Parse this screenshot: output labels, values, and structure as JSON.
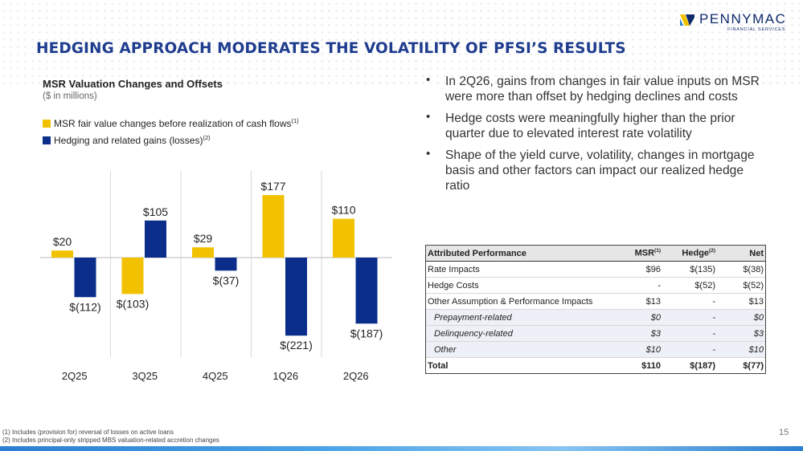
{
  "brand": {
    "name": "PENNYMAC",
    "tagline": "FINANCIAL SERVICES",
    "navy": "#0f2a6b",
    "gold": "#f2c200",
    "blue": "#1f3d8f"
  },
  "title": "HEDGING APPROACH MODERATES THE VOLATILITY OF PFSI’S RESULTS",
  "chart_title": "MSR Valuation Changes and Offsets",
  "chart_subtitle": "($ in millions)",
  "legend": [
    {
      "label": "MSR fair value changes before realization of cash flows",
      "note": "(1)",
      "color": "#f2c200"
    },
    {
      "label": "Hedging and related gains (losses)",
      "note": "(2)",
      "color": "#0a2e8a"
    }
  ],
  "chart_data": {
    "type": "bar",
    "categories": [
      "2Q25",
      "3Q25",
      "4Q25",
      "1Q26",
      "2Q26"
    ],
    "series": [
      {
        "name": "MSR fair value changes before realization of cash flows",
        "values": [
          20,
          -103,
          29,
          177,
          110
        ],
        "labels": [
          "$20",
          "$(103)",
          "$29",
          "$177",
          "$110"
        ]
      },
      {
        "name": "Hedging and related gains (losses)",
        "values": [
          -112,
          105,
          -37,
          -221,
          -187
        ],
        "labels": [
          "$(112)",
          "$105",
          "$(37)",
          "$(221)",
          "$(187)"
        ]
      }
    ],
    "ylim": [
      -221,
      177
    ],
    "grid": false
  },
  "bullets": [
    "In 2Q26, gains from changes in fair value inputs on MSR were more than offset by hedging declines and costs",
    "Hedge costs were meaningfully higher than the prior quarter due to elevated interest rate volatility",
    "Shape of the yield curve, volatility, changes in mortgage basis and other factors can impact our realized hedge ratio"
  ],
  "table": {
    "headers": {
      "label": "Attributed Performance",
      "msr": "MSR",
      "msr_note": "(1)",
      "hedge": "Hedge",
      "hedge_note": "(2)",
      "net": "Net"
    },
    "rows": [
      {
        "label": "Rate Impacts",
        "msr": "$96",
        "hedge": "$(135)",
        "net": "$(38)"
      },
      {
        "label": "Hedge Costs",
        "msr": "-",
        "hedge": "$(52)",
        "net": "$(52)"
      },
      {
        "label": "Other Assumption & Performance Impacts",
        "msr": "$13",
        "hedge": "-",
        "net": "$13"
      },
      {
        "label": "Prepayment-related",
        "msr": "$0",
        "hedge": "-",
        "net": "$0"
      },
      {
        "label": "Delinquency-related",
        "msr": "$3",
        "hedge": "-",
        "net": "$3"
      },
      {
        "label": "Other",
        "msr": "$10",
        "hedge": "-",
        "net": "$10"
      }
    ],
    "total": {
      "label": "Total",
      "msr": "$110",
      "hedge": "$(187)",
      "net": "$(77)"
    }
  },
  "footnotes": [
    "(1) Includes (provision for) reversal of losses on active loans",
    "(2) Includes principal-only stripped MBS valuation-related accretion changes"
  ],
  "page_number": "15"
}
